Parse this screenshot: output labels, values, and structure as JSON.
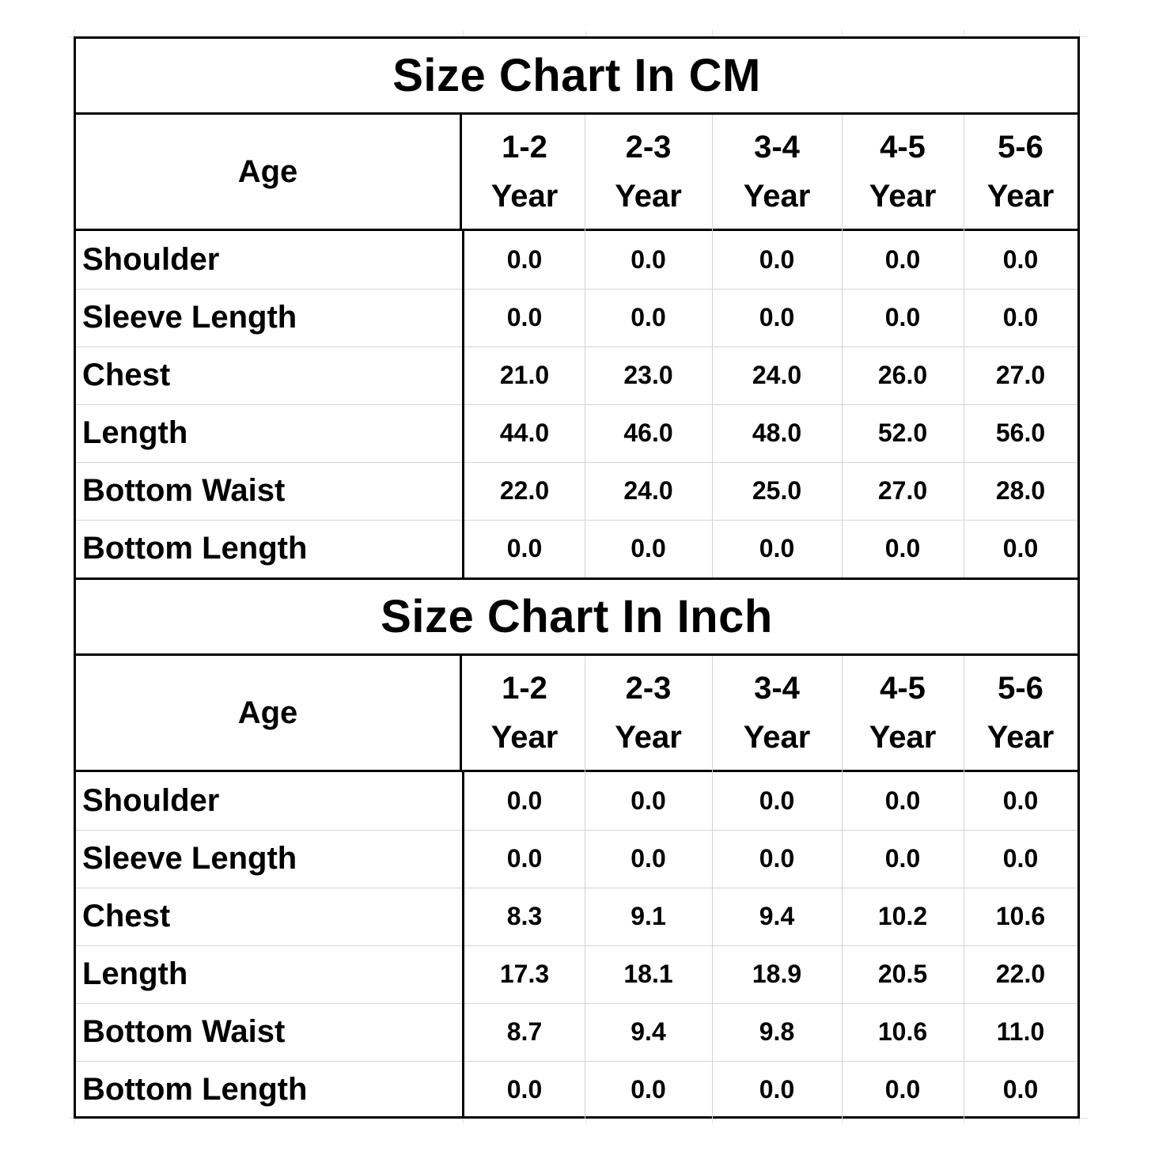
{
  "charts": [
    {
      "title": "Size Chart In CM",
      "age_label": "Age",
      "sizes": [
        {
          "range": "1-2",
          "unit": "Year"
        },
        {
          "range": "2-3",
          "unit": "Year"
        },
        {
          "range": "3-4",
          "unit": "Year"
        },
        {
          "range": "4-5",
          "unit": "Year"
        },
        {
          "range": "5-6",
          "unit": "Year"
        }
      ],
      "rows": [
        {
          "label": "Shoulder",
          "values": [
            "0.0",
            "0.0",
            "0.0",
            "0.0",
            "0.0"
          ]
        },
        {
          "label": "Sleeve Length",
          "values": [
            "0.0",
            "0.0",
            "0.0",
            "0.0",
            "0.0"
          ]
        },
        {
          "label": "Chest",
          "values": [
            "21.0",
            "23.0",
            "24.0",
            "26.0",
            "27.0"
          ]
        },
        {
          "label": "Length",
          "values": [
            "44.0",
            "46.0",
            "48.0",
            "52.0",
            "56.0"
          ]
        },
        {
          "label": "Bottom Waist",
          "values": [
            "22.0",
            "24.0",
            "25.0",
            "27.0",
            "28.0"
          ]
        },
        {
          "label": "Bottom Length",
          "values": [
            "0.0",
            "0.0",
            "0.0",
            "0.0",
            "0.0"
          ]
        }
      ]
    },
    {
      "title": "Size Chart In Inch",
      "age_label": "Age",
      "sizes": [
        {
          "range": "1-2",
          "unit": "Year"
        },
        {
          "range": "2-3",
          "unit": "Year"
        },
        {
          "range": "3-4",
          "unit": "Year"
        },
        {
          "range": "4-5",
          "unit": "Year"
        },
        {
          "range": "5-6",
          "unit": "Year"
        }
      ],
      "rows": [
        {
          "label": "Shoulder",
          "values": [
            "0.0",
            "0.0",
            "0.0",
            "0.0",
            "0.0"
          ]
        },
        {
          "label": "Sleeve Length",
          "values": [
            "0.0",
            "0.0",
            "0.0",
            "0.0",
            "0.0"
          ]
        },
        {
          "label": "Chest",
          "values": [
            "8.3",
            "9.1",
            "9.4",
            "10.2",
            "10.6"
          ]
        },
        {
          "label": "Length",
          "values": [
            "17.3",
            "18.1",
            "18.9",
            "20.5",
            "22.0"
          ]
        },
        {
          "label": "Bottom Waist",
          "values": [
            "8.7",
            "9.4",
            "9.8",
            "10.6",
            "11.0"
          ]
        },
        {
          "label": "Bottom Length",
          "values": [
            "0.0",
            "0.0",
            "0.0",
            "0.0",
            "0.0"
          ]
        }
      ]
    }
  ]
}
